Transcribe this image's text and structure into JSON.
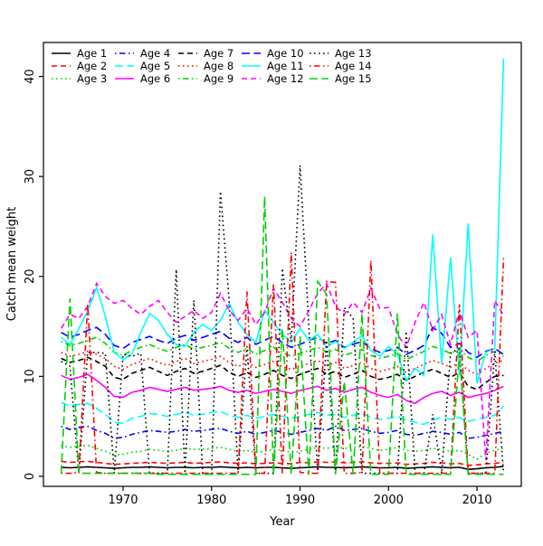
{
  "figure": {
    "background": "#ffffff",
    "box_color": "#000000"
  },
  "chart_data": {
    "type": "line",
    "title": "",
    "xlabel": "Year",
    "ylabel": "Catch mean weight",
    "x_ticks": [
      1970,
      1980,
      1990,
      2000,
      2010
    ],
    "y_ticks": [
      0,
      10,
      20,
      30,
      40
    ],
    "xlim": [
      1961,
      2015
    ],
    "ylim": [
      -1,
      43.4
    ],
    "grid": false,
    "legend_position": "top-left",
    "legend_columns": 5,
    "legend_rows": 3,
    "years": [
      1963,
      1964,
      1965,
      1966,
      1967,
      1968,
      1969,
      1970,
      1971,
      1972,
      1973,
      1974,
      1975,
      1976,
      1977,
      1978,
      1979,
      1980,
      1981,
      1982,
      1983,
      1984,
      1985,
      1986,
      1987,
      1988,
      1989,
      1990,
      1991,
      1992,
      1993,
      1994,
      1995,
      1996,
      1997,
      1998,
      1999,
      2000,
      2001,
      2002,
      2003,
      2004,
      2005,
      2006,
      2007,
      2008,
      2009,
      2010,
      2011,
      2012,
      2013
    ],
    "series": [
      {
        "name": "Age 1",
        "color": "#000000",
        "linetype": "solid",
        "values": [
          0.9,
          0.85,
          0.9,
          0.95,
          0.9,
          0.85,
          0.8,
          0.85,
          0.9,
          0.9,
          0.95,
          0.9,
          0.85,
          0.9,
          0.9,
          0.85,
          0.9,
          0.9,
          0.95,
          0.9,
          0.85,
          0.9,
          0.85,
          0.9,
          0.9,
          0.85,
          0.8,
          0.85,
          0.9,
          0.95,
          0.9,
          0.9,
          0.85,
          0.9,
          0.95,
          0.9,
          0.85,
          0.85,
          0.9,
          0.8,
          0.85,
          0.9,
          0.95,
          0.9,
          0.85,
          0.9,
          0.7,
          0.75,
          0.85,
          0.9,
          1.0
        ]
      },
      {
        "name": "Age 2",
        "color": "#ff0000",
        "linetype": "dashed",
        "values": [
          1.5,
          1.4,
          1.45,
          1.5,
          1.4,
          1.3,
          1.2,
          1.25,
          1.3,
          1.35,
          1.4,
          1.35,
          1.3,
          1.35,
          1.4,
          1.3,
          1.35,
          1.4,
          1.45,
          1.35,
          1.3,
          1.35,
          1.25,
          1.3,
          1.35,
          1.3,
          1.25,
          1.4,
          1.35,
          1.45,
          1.4,
          1.45,
          1.35,
          1.4,
          1.45,
          1.35,
          1.3,
          1.3,
          1.35,
          1.2,
          1.25,
          1.3,
          1.4,
          1.35,
          1.25,
          1.3,
          1.1,
          1.15,
          1.25,
          1.3,
          1.4
        ]
      },
      {
        "name": "Age 3",
        "color": "#00d000",
        "linetype": "dotted",
        "values": [
          3.1,
          2.9,
          3.0,
          3.1,
          2.8,
          2.5,
          2.1,
          2.2,
          2.4,
          2.5,
          2.7,
          2.6,
          2.5,
          2.6,
          2.8,
          2.7,
          2.7,
          2.8,
          2.9,
          2.7,
          2.5,
          2.6,
          2.4,
          2.5,
          2.7,
          2.6,
          2.4,
          2.5,
          2.7,
          2.9,
          2.8,
          3.0,
          2.8,
          2.9,
          3.0,
          2.8,
          2.6,
          2.7,
          2.9,
          2.6,
          2.5,
          2.6,
          2.8,
          2.7,
          2.5,
          2.6,
          2.2,
          1.7,
          2.3,
          2.6,
          2.8
        ]
      },
      {
        "name": "Age 4",
        "color": "#0000ff",
        "linetype": "dotdash",
        "values": [
          5.0,
          4.7,
          4.9,
          5.0,
          4.6,
          4.3,
          3.8,
          3.9,
          4.2,
          4.4,
          4.6,
          4.5,
          4.4,
          4.5,
          4.7,
          4.5,
          4.6,
          4.7,
          4.8,
          4.5,
          4.3,
          4.5,
          4.2,
          4.4,
          4.6,
          4.4,
          4.2,
          4.4,
          4.6,
          4.8,
          4.6,
          5.0,
          4.6,
          4.7,
          4.8,
          4.5,
          4.3,
          4.4,
          4.6,
          4.2,
          4.1,
          4.3,
          4.5,
          4.4,
          4.2,
          4.4,
          3.8,
          3.9,
          4.1,
          4.3,
          4.5
        ]
      },
      {
        "name": "Age 5",
        "color": "#00ffff",
        "linetype": "longdash",
        "values": [
          7.4,
          7.0,
          7.2,
          7.3,
          6.8,
          6.2,
          5.4,
          5.3,
          5.8,
          6.0,
          6.3,
          6.2,
          6.0,
          6.2,
          6.4,
          6.1,
          6.2,
          6.4,
          6.5,
          6.1,
          5.9,
          6.1,
          5.8,
          6.0,
          6.2,
          6.0,
          5.8,
          6.0,
          6.2,
          6.4,
          6.1,
          6.2,
          5.9,
          6.1,
          6.3,
          5.9,
          5.7,
          5.8,
          6.0,
          5.6,
          5.4,
          5.2,
          5.6,
          5.9,
          5.7,
          5.9,
          5.5,
          5.7,
          5.9,
          6.1,
          7.0
        ]
      },
      {
        "name": "Age 6",
        "color": "#ff00ff",
        "linetype": "solid",
        "values": [
          10.1,
          9.7,
          9.9,
          10.2,
          9.6,
          8.9,
          8.0,
          7.9,
          8.4,
          8.6,
          8.9,
          8.7,
          8.5,
          8.7,
          8.9,
          8.6,
          8.7,
          8.8,
          9.0,
          8.6,
          8.4,
          8.6,
          8.3,
          8.5,
          8.7,
          8.5,
          8.3,
          8.6,
          8.8,
          9.0,
          8.6,
          8.8,
          8.4,
          8.7,
          8.9,
          8.4,
          8.1,
          7.9,
          8.2,
          7.6,
          7.3,
          7.9,
          8.3,
          8.5,
          8.1,
          8.4,
          7.9,
          8.1,
          8.3,
          8.6,
          9.0
        ]
      },
      {
        "name": "Age 7",
        "color": "#000000",
        "linetype": "dashed",
        "values": [
          11.8,
          11.4,
          11.6,
          11.9,
          11.5,
          11.0,
          9.9,
          9.7,
          10.3,
          10.6,
          10.9,
          10.5,
          10.1,
          10.5,
          10.8,
          10.3,
          10.5,
          10.8,
          11.1,
          10.4,
          10.0,
          10.4,
          9.9,
          10.2,
          10.6,
          10.1,
          9.8,
          10.2,
          10.5,
          10.8,
          10.2,
          10.5,
          9.9,
          10.2,
          10.6,
          10.0,
          9.7,
          9.9,
          10.2,
          9.6,
          10.0,
          10.4,
          10.7,
          10.3,
          9.9,
          10.4,
          9.0,
          8.7,
          9.4,
          10.0,
          10.1
        ]
      },
      {
        "name": "Age 8",
        "color": "#ff0000",
        "linetype": "dotted",
        "values": [
          12.4,
          12.0,
          12.2,
          12.5,
          12.2,
          11.8,
          11.0,
          10.7,
          11.2,
          11.5,
          11.8,
          11.4,
          11.1,
          11.5,
          11.8,
          11.3,
          11.5,
          11.7,
          12.0,
          11.4,
          11.0,
          11.4,
          10.9,
          11.2,
          11.5,
          11.0,
          10.7,
          11.0,
          11.3,
          11.6,
          11.1,
          11.4,
          10.8,
          11.1,
          11.4,
          10.8,
          10.5,
          10.7,
          11.0,
          10.4,
          10.8,
          11.2,
          11.6,
          11.3,
          10.9,
          11.4,
          10.6,
          10.2,
          10.8,
          11.3,
          11.6
        ]
      },
      {
        "name": "Age 9",
        "color": "#00d000",
        "linetype": "dotdash",
        "values": [
          13.5,
          13.1,
          13.3,
          13.6,
          13.9,
          13.3,
          12.4,
          12.1,
          12.6,
          12.9,
          13.2,
          12.8,
          12.5,
          12.9,
          13.2,
          12.7,
          12.9,
          13.1,
          13.4,
          12.8,
          12.4,
          12.8,
          12.2,
          12.6,
          12.9,
          12.4,
          12.0,
          12.3,
          12.6,
          12.9,
          12.4,
          12.7,
          12.1,
          12.4,
          12.7,
          12.1,
          11.8,
          12.0,
          12.3,
          11.7,
          12.1,
          12.5,
          13.0,
          12.7,
          12.3,
          12.7,
          11.9,
          11.5,
          12.1,
          12.5,
          12.0
        ]
      },
      {
        "name": "Age 10",
        "color": "#0000ff",
        "linetype": "longdash",
        "values": [
          14.4,
          13.9,
          14.2,
          14.6,
          14.9,
          14.2,
          13.1,
          12.8,
          13.4,
          13.7,
          14.0,
          13.6,
          13.3,
          13.8,
          14.1,
          13.6,
          13.9,
          14.2,
          14.5,
          13.8,
          13.4,
          13.9,
          13.2,
          13.6,
          14.0,
          13.4,
          12.9,
          13.2,
          13.6,
          13.9,
          13.3,
          13.6,
          12.9,
          13.2,
          13.5,
          12.8,
          12.4,
          12.6,
          12.9,
          12.2,
          12.6,
          13.1,
          14.9,
          14.3,
          12.9,
          13.3,
          12.4,
          11.9,
          12.5,
          12.8,
          12.2
        ]
      },
      {
        "name": "Age 11",
        "color": "#00ffff",
        "linetype": "solid",
        "values": [
          13.9,
          13.2,
          14.8,
          16.5,
          18.9,
          16.0,
          12.4,
          11.7,
          12.2,
          14.4,
          16.3,
          15.6,
          14.2,
          13.2,
          13.0,
          14.4,
          15.2,
          14.6,
          15.6,
          17.3,
          15.4,
          14.2,
          13.4,
          16.6,
          15.4,
          14.2,
          13.4,
          14.8,
          13.6,
          14.2,
          12.9,
          13.5,
          12.8,
          13.4,
          14.1,
          12.6,
          12.0,
          13.0,
          12.2,
          9.6,
          10.8,
          10.1,
          24.2,
          11.3,
          21.9,
          10.2,
          25.3,
          9.3,
          12.4,
          12.8,
          41.8
        ]
      },
      {
        "name": "Age 12",
        "color": "#ff00ff",
        "linetype": "dashed",
        "values": [
          14.8,
          16.2,
          15.8,
          17.0,
          19.3,
          18.0,
          17.3,
          17.6,
          16.8,
          16.2,
          17.0,
          17.6,
          16.4,
          15.4,
          16.0,
          16.6,
          15.8,
          16.4,
          18.3,
          16.6,
          15.6,
          16.8,
          15.2,
          16.4,
          18.8,
          17.4,
          15.8,
          15.0,
          16.6,
          18.3,
          19.3,
          17.0,
          16.2,
          17.4,
          16.4,
          18.8,
          16.8,
          16.9,
          14.2,
          12.9,
          15.4,
          17.4,
          14.6,
          16.2,
          13.2,
          16.6,
          13.9,
          14.6,
          1.6,
          17.6,
          16.1
        ]
      },
      {
        "name": "Age 13",
        "color": "#000000",
        "linetype": "dotted",
        "values": [
          11.5,
          11.0,
          0.3,
          12.4,
          12.4,
          12.3,
          0.3,
          12.2,
          12.0,
          12.3,
          0.3,
          0.3,
          0.3,
          20.7,
          0.3,
          17.6,
          0.3,
          0.3,
          28.5,
          17.5,
          0.3,
          13.0,
          0.3,
          0.3,
          0.3,
          20.8,
          13.5,
          31.1,
          15.0,
          0.3,
          13.6,
          0.3,
          16.9,
          15.8,
          0.3,
          0.3,
          0.3,
          0.3,
          0.3,
          14.5,
          0.3,
          0.3,
          6.2,
          0.3,
          12.3,
          12.8,
          0.3,
          0.3,
          0.3,
          12.5,
          0.3
        ]
      },
      {
        "name": "Age 14",
        "color": "#ff0000",
        "linetype": "dotdash",
        "values": [
          0.3,
          0.3,
          0.4,
          17.3,
          0.4,
          0.3,
          0.3,
          0.3,
          0.3,
          0.3,
          0.3,
          0.3,
          0.3,
          0.3,
          0.3,
          0.3,
          0.3,
          0.3,
          0.3,
          0.3,
          0.3,
          18.5,
          0.3,
          0.3,
          19.2,
          0.3,
          22.4,
          0.4,
          0.3,
          0.3,
          19.5,
          19.4,
          0.3,
          0.3,
          0.4,
          21.6,
          0.3,
          0.3,
          0.3,
          0.3,
          0.3,
          0.3,
          0.3,
          0.3,
          0.3,
          17.2,
          0.3,
          0.3,
          0.3,
          0.3,
          21.9
        ]
      },
      {
        "name": "Age 15",
        "color": "#00d000",
        "linetype": "longdash",
        "values": [
          0.3,
          17.8,
          0.3,
          0.3,
          0.3,
          0.3,
          0.3,
          0.3,
          0.3,
          0.3,
          0.3,
          0.2,
          0.2,
          0.2,
          0.2,
          0.2,
          0.2,
          0.2,
          0.2,
          0.2,
          0.2,
          0.2,
          0.2,
          28.0,
          0.2,
          14.8,
          0.2,
          14.0,
          0.2,
          19.5,
          18.2,
          0.2,
          9.5,
          0.2,
          16.3,
          0.2,
          0.2,
          0.2,
          16.3,
          0.2,
          0.2,
          0.2,
          0.2,
          0.2,
          0.2,
          12.4,
          0.2,
          0.2,
          0.2,
          0.2,
          0.2
        ]
      }
    ]
  }
}
